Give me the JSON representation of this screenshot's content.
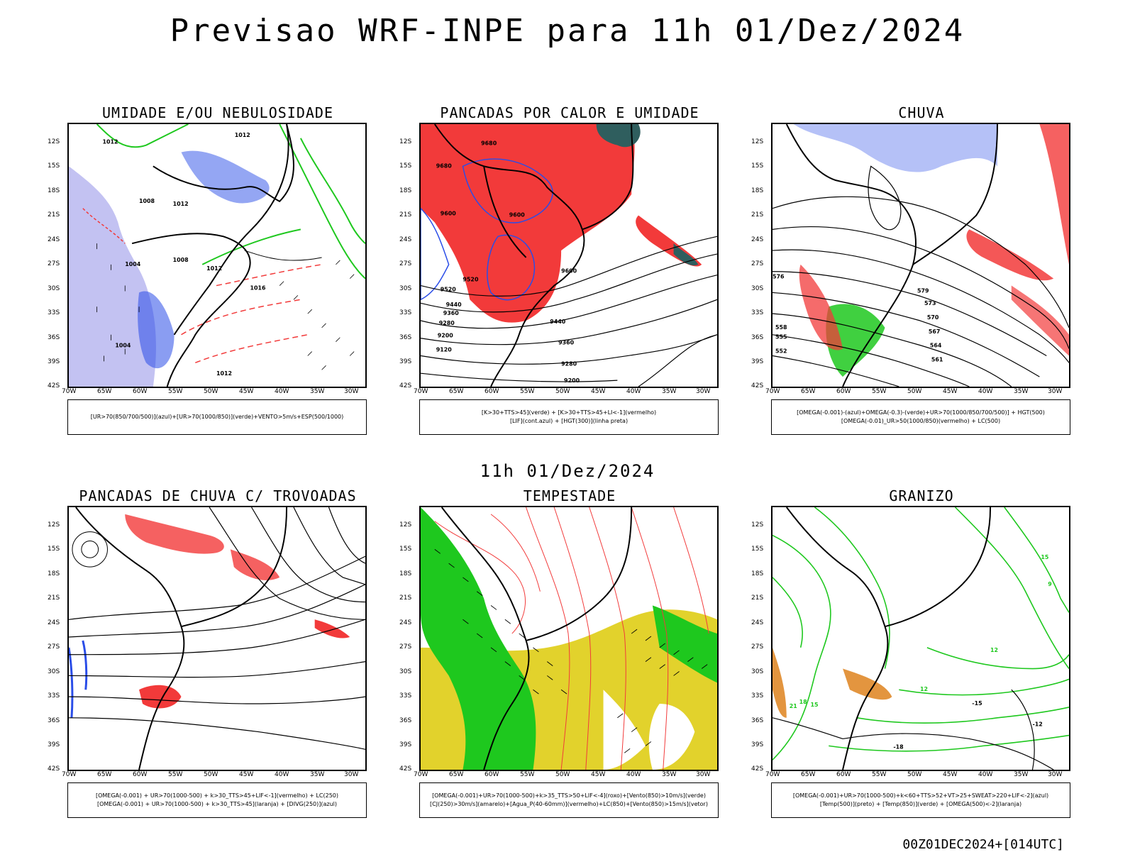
{
  "title": "Previsao WRF-INPE  para 11h 01/Dez/2024",
  "midtitle": "11h 01/Dez/2024",
  "footer": "00Z01DEC2024+[014UTC]",
  "axes": {
    "lat_labels": [
      "12S",
      "15S",
      "18S",
      "21S",
      "24S",
      "27S",
      "30S",
      "33S",
      "36S",
      "39S",
      "42S"
    ],
    "lon_labels": [
      "70W",
      "65W",
      "60W",
      "55W",
      "50W",
      "45W",
      "40W",
      "35W",
      "30W"
    ]
  },
  "panels": [
    {
      "title": "UMIDADE E/OU NEBULOSIDADE",
      "legend": [
        "[UR>70(850/700/500)](azul)+[UR>70(1000/850)](verde)+VENTO>5m/s+ESP(500/1000)"
      ],
      "contour_labels": [
        "1012",
        "1012",
        "1008",
        "1012",
        "1004",
        "1008",
        "1012",
        "1016",
        "1004",
        "1012"
      ]
    },
    {
      "title": "PANCADAS POR CALOR E UMIDADE",
      "legend": [
        "[K>30+TTS>45](verde) + [K>30+TTS>45+LI<-1](vermelho)",
        "[LIF](cont.azul) + [HGT(300)](linha preta)"
      ],
      "contour_labels": [
        "9680",
        "9680",
        "9600",
        "9600",
        "9600",
        "9520",
        "9520",
        "9440",
        "9360",
        "9440",
        "9280",
        "9200",
        "9120",
        "9360",
        "9280",
        "9200"
      ]
    },
    {
      "title": "CHUVA",
      "legend": [
        "[OMEGA(-0.001)-(azul)+OMEGA(-0.3)-(verde)+UR>70(1000/850/700/500)] + HGT(500)",
        "[OMEGA(-0.01)_UR>50(1000/850)(vermelho) + LC(500)"
      ],
      "contour_labels": [
        "579",
        "576",
        "573",
        "570",
        "567",
        "564",
        "561",
        "558",
        "555",
        "552"
      ]
    },
    {
      "title": "PANCADAS DE CHUVA C/ TROVOADAS",
      "legend": [
        "[OMEGA(-0.001) + UR>70(1000-500) + k>30_TTS>45+LIF<-1](vermelho) + LC(250)",
        "[OMEGA(-0.001) + UR>70(1000-500) + k>30_TTS>45](laranja) + [DIVG(250)](azul)"
      ]
    },
    {
      "title": "TEMPESTADE",
      "legend": [
        "[OMEGA(-0.001)+UR>70(1000-500)+k>35_TTS>50+LIF<-4](roxo)+[Vento(850)>10m/s](verde)",
        "[CJ(250)>30m/s](amarelo)+[Agua_P(40-60mm)](vermelho)+LC(850)+[Vento(850)>15m/s](vetor)"
      ]
    },
    {
      "title": "GRANIZO",
      "legend": [
        "[OMEGA(-0.001)+UR>70(1000-500)+k<60+TTS>52+VT>25+SWEAT>220+LIF<-2](azul)",
        "[Temp(500)](preto) + [Temp(850)](verde) + [OMEGA(500)<-2](laranja)"
      ],
      "contour_labels": [
        "15",
        "12",
        "9",
        "21",
        "18",
        "15",
        "12",
        "-15",
        "-12",
        "-18"
      ]
    }
  ],
  "colors": {
    "red": "#f23a3a",
    "blue": "#2a4de8",
    "green": "#1ec81e",
    "lightblue": "#a9a8ec",
    "yellow": "#e2d22c",
    "darkteal": "#2f5e5e",
    "orange": "#e0892a"
  }
}
